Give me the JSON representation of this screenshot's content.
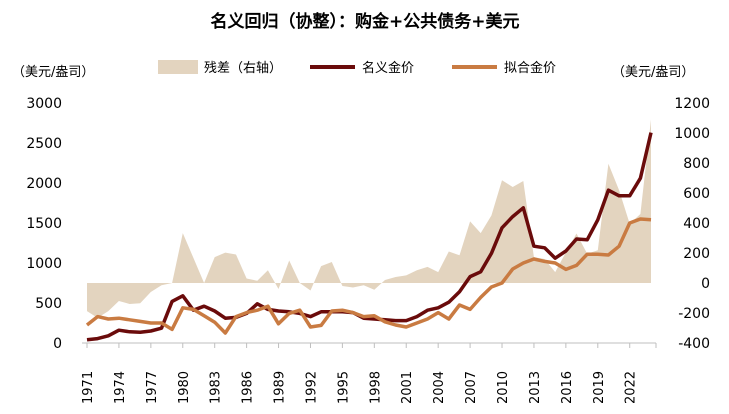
{
  "chart_data": {
    "type": "line",
    "title": "名义回归（协整）：购金+公共债务+美元",
    "ylabel_left": "（美元/盎司）",
    "ylabel_right": "（美元/盎司）",
    "ylim_left": [
      0,
      3000
    ],
    "ylim_right": [
      -400,
      1200
    ],
    "yticks_left": [
      "0",
      "500",
      "1000",
      "1500",
      "2000",
      "2500",
      "3000"
    ],
    "yticks_right": [
      "-400",
      "-200",
      "0",
      "200",
      "400",
      "600",
      "800",
      "1000",
      "1200"
    ],
    "xticks": [
      "1971",
      "1974",
      "1977",
      "1980",
      "1983",
      "1986",
      "1989",
      "1992",
      "1995",
      "1998",
      "2001",
      "2004",
      "2007",
      "2010",
      "2013",
      "2016",
      "2019",
      "2022"
    ],
    "grid": false,
    "legend_position": "top",
    "x": [
      1971,
      1972,
      1973,
      1974,
      1975,
      1976,
      1977,
      1978,
      1979,
      1980,
      1981,
      1982,
      1983,
      1984,
      1985,
      1986,
      1987,
      1988,
      1989,
      1990,
      1991,
      1992,
      1993,
      1994,
      1995,
      1996,
      1997,
      1998,
      1999,
      2000,
      2001,
      2002,
      2003,
      2004,
      2005,
      2006,
      2007,
      2008,
      2009,
      2010,
      2011,
      2012,
      2013,
      2014,
      2015,
      2016,
      2017,
      2018,
      2019,
      2020,
      2021,
      2022,
      2023,
      2024
    ],
    "series": [
      {
        "name": "残差（右轴）",
        "axis": "right",
        "kind": "area",
        "color": "#e3d4bf",
        "values": [
          -187,
          -233,
          -187,
          -120,
          -140,
          -135,
          -60,
          -15,
          0,
          333,
          167,
          0,
          173,
          203,
          190,
          30,
          15,
          85,
          -40,
          150,
          0,
          -50,
          113,
          140,
          -20,
          -30,
          -15,
          -45,
          20,
          40,
          51,
          85,
          107,
          73,
          210,
          185,
          411,
          333,
          450,
          685,
          640,
          680,
          173,
          160,
          73,
          205,
          330,
          195,
          218,
          795,
          618,
          395,
          460,
          1090
        ]
      },
      {
        "name": "名义金价",
        "axis": "left",
        "kind": "line",
        "color": "#6a0b0b",
        "values": [
          40,
          55,
          90,
          160,
          140,
          135,
          150,
          185,
          520,
          590,
          410,
          460,
          400,
          310,
          320,
          370,
          490,
          420,
          400,
          390,
          370,
          330,
          390,
          390,
          390,
          380,
          310,
          300,
          290,
          280,
          280,
          330,
          410,
          440,
          510,
          640,
          830,
          890,
          1120,
          1440,
          1580,
          1690,
          1210,
          1190,
          1060,
          1150,
          1300,
          1290,
          1540,
          1910,
          1840,
          1840,
          2060,
          2630
        ]
      },
      {
        "name": "拟合金价",
        "axis": "left",
        "kind": "line",
        "color": "#c97b42",
        "values": [
          225,
          330,
          300,
          310,
          290,
          270,
          250,
          250,
          170,
          440,
          420,
          340,
          260,
          125,
          330,
          380,
          410,
          460,
          240,
          370,
          410,
          200,
          220,
          400,
          410,
          380,
          330,
          340,
          265,
          225,
          200,
          250,
          300,
          380,
          300,
          475,
          420,
          570,
          700,
          750,
          925,
          1000,
          1050,
          1020,
          1000,
          920,
          970,
          1110,
          1110,
          1100,
          1210,
          1500,
          1550,
          1540
        ]
      }
    ]
  }
}
